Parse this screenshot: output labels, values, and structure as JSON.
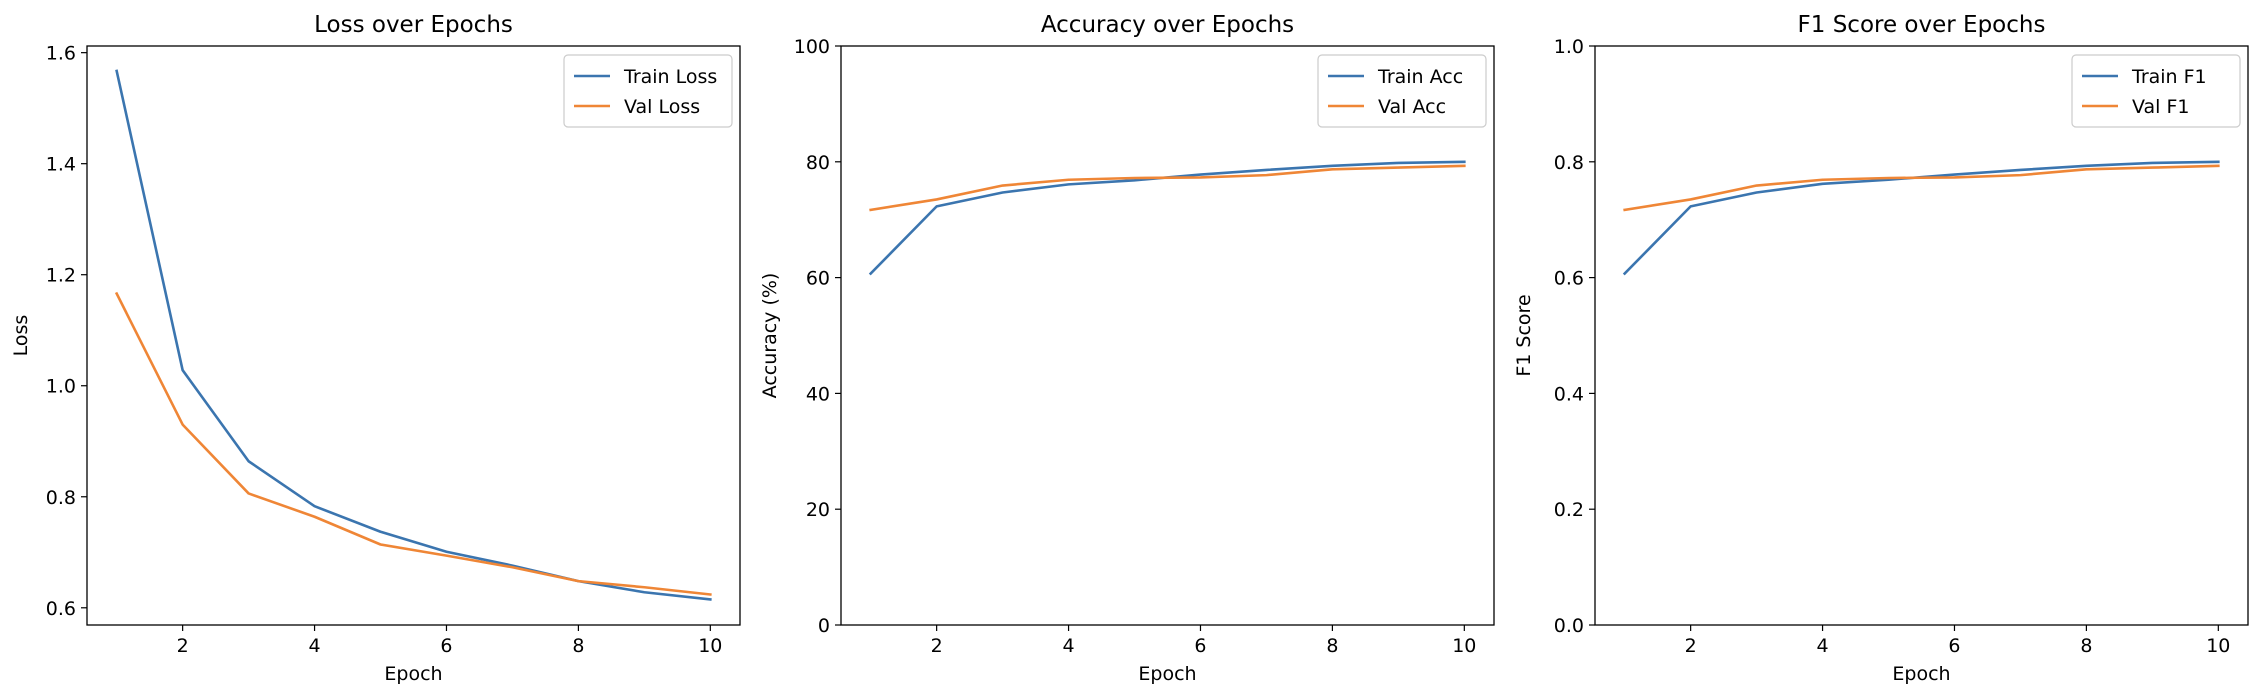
{
  "colors": {
    "train": "#3b75af",
    "val": "#ef8636"
  },
  "chart_data": [
    {
      "type": "line",
      "title": "Loss over Epochs",
      "xlabel": "Epoch",
      "ylabel": "Loss",
      "x": [
        1,
        2,
        3,
        4,
        5,
        6,
        7,
        8,
        9,
        10
      ],
      "xlim": [
        0.55,
        10.45
      ],
      "ylim": [
        0.569,
        1.612
      ],
      "xticks": [
        2,
        4,
        6,
        8,
        10
      ],
      "xtick_labels": [
        "2",
        "4",
        "6",
        "8",
        "10"
      ],
      "yticks": [
        0.6,
        0.8,
        1.0,
        1.2,
        1.4,
        1.6
      ],
      "ytick_labels": [
        "0.6",
        "0.8",
        "1.0",
        "1.2",
        "1.4",
        "1.6"
      ],
      "legend_position": "top-right",
      "grid": false,
      "series": [
        {
          "name": "Train Loss",
          "values": [
            1.567,
            1.028,
            0.864,
            0.783,
            0.737,
            0.701,
            0.676,
            0.648,
            0.628,
            0.615
          ]
        },
        {
          "name": "Val Loss",
          "values": [
            1.166,
            0.93,
            0.806,
            0.764,
            0.714,
            0.694,
            0.673,
            0.648,
            0.637,
            0.624
          ]
        }
      ]
    },
    {
      "type": "line",
      "title": "Accuracy over Epochs",
      "xlabel": "Epoch",
      "ylabel": "Accuracy (%)",
      "x": [
        1,
        2,
        3,
        4,
        5,
        6,
        7,
        8,
        9,
        10
      ],
      "xlim": [
        0.55,
        10.45
      ],
      "ylim": [
        0,
        100
      ],
      "xticks": [
        2,
        4,
        6,
        8,
        10
      ],
      "xtick_labels": [
        "2",
        "4",
        "6",
        "8",
        "10"
      ],
      "yticks": [
        0,
        20,
        40,
        60,
        80,
        100
      ],
      "ytick_labels": [
        "0",
        "20",
        "40",
        "60",
        "80",
        "100"
      ],
      "legend_position": "top-right",
      "grid": false,
      "series": [
        {
          "name": "Train Acc",
          "values": [
            60.7,
            72.3,
            74.7,
            76.1,
            76.8,
            77.8,
            78.6,
            79.3,
            79.8,
            80.0
          ]
        },
        {
          "name": "Val Acc",
          "values": [
            71.7,
            73.5,
            75.9,
            76.9,
            77.2,
            77.3,
            77.7,
            78.7,
            79.0,
            79.3
          ]
        }
      ]
    },
    {
      "type": "line",
      "title": "F1 Score over Epochs",
      "xlabel": "Epoch",
      "ylabel": "F1 Score",
      "x": [
        1,
        2,
        3,
        4,
        5,
        6,
        7,
        8,
        9,
        10
      ],
      "xlim": [
        0.55,
        10.45
      ],
      "ylim": [
        0,
        1.0
      ],
      "xticks": [
        2,
        4,
        6,
        8,
        10
      ],
      "xtick_labels": [
        "2",
        "4",
        "6",
        "8",
        "10"
      ],
      "yticks": [
        0.0,
        0.2,
        0.4,
        0.6,
        0.8,
        1.0
      ],
      "ytick_labels": [
        "0.0",
        "0.2",
        "0.4",
        "0.6",
        "0.8",
        "1.0"
      ],
      "legend_position": "top-right",
      "grid": false,
      "series": [
        {
          "name": "Train F1",
          "values": [
            0.607,
            0.723,
            0.747,
            0.762,
            0.769,
            0.778,
            0.786,
            0.793,
            0.798,
            0.8
          ]
        },
        {
          "name": "Val F1",
          "values": [
            0.717,
            0.735,
            0.759,
            0.769,
            0.772,
            0.773,
            0.777,
            0.787,
            0.79,
            0.793
          ]
        }
      ]
    }
  ]
}
